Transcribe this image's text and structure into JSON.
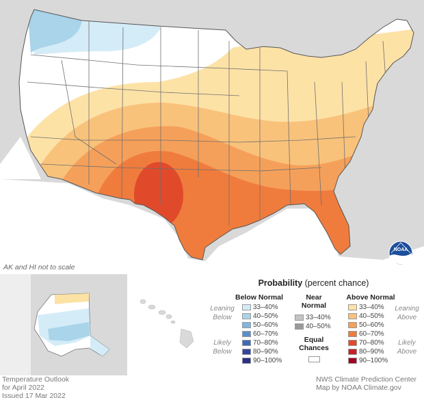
{
  "map_note": "AK and HI not to scale",
  "legend": {
    "title_bold": "Probability",
    "title_rest": " (percent chance)",
    "below_header": "Below Normal",
    "near_header_line1": "Near",
    "near_header_line2": "Normal",
    "above_header": "Above Normal",
    "below_items": [
      {
        "label": "33–40%",
        "color": "#d4ecf7"
      },
      {
        "label": "40–50%",
        "color": "#a9d4ea"
      },
      {
        "label": "50–60%",
        "color": "#7fb6de"
      },
      {
        "label": "60–70%",
        "color": "#5a8fcd"
      },
      {
        "label": "70–80%",
        "color": "#3f6bb6"
      },
      {
        "label": "80–90%",
        "color": "#33459c"
      },
      {
        "label": "90–100%",
        "color": "#2a2f86"
      }
    ],
    "near_items": [
      {
        "label": "33–40%",
        "color": "#c4c4c4"
      },
      {
        "label": "40–50%",
        "color": "#9a9a9a"
      }
    ],
    "above_items": [
      {
        "label": "33–40%",
        "color": "#fde2a6"
      },
      {
        "label": "40–50%",
        "color": "#f9c27b"
      },
      {
        "label": "50–60%",
        "color": "#f5a05a"
      },
      {
        "label": "60–70%",
        "color": "#ef7c3d"
      },
      {
        "label": "70–80%",
        "color": "#e04a2b"
      },
      {
        "label": "80–90%",
        "color": "#c82026"
      },
      {
        "label": "90–100%",
        "color": "#a10322"
      }
    ],
    "equal_line1": "Equal",
    "equal_line2": "Chances",
    "equal_color": "#ffffff",
    "leaning_below_1": "Leaning",
    "leaning_below_2": "Below",
    "likely_below_1": "Likely",
    "likely_below_2": "Below",
    "leaning_above_1": "Leaning",
    "leaning_above_2": "Above",
    "likely_above_1": "Likely",
    "likely_above_2": "Above"
  },
  "footer": {
    "left_line1": "Temperature Outlook",
    "left_line2": "for April 2022",
    "left_line3": "Issued 17 Mar 2022",
    "right_line1": "NWS Climate Prediction Center",
    "right_line2": "Map by NOAA Climate.gov"
  },
  "logo_text": "NOAA",
  "colors": {
    "background_land": "#d9d9d9",
    "water": "#ffffff",
    "state_lines": "#6e6e6e"
  }
}
